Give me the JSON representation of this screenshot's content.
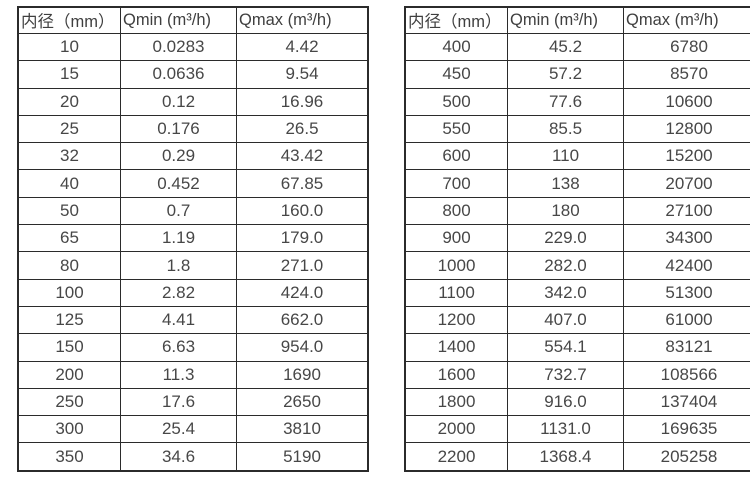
{
  "page": {
    "background_color": "#ffffff",
    "border_color": "#2b2b2b",
    "header_text_color": "#3f3f3f",
    "cell_text_color": "#474747"
  },
  "chart_data": [
    {
      "type": "table",
      "title": "",
      "columns": [
        "内径（mm）",
        "Qmin (m³/h)",
        "Qmax (m³/h)"
      ],
      "rows": [
        [
          "10",
          "0.0283",
          "4.42"
        ],
        [
          "15",
          "0.0636",
          "9.54"
        ],
        [
          "20",
          "0.12",
          "16.96"
        ],
        [
          "25",
          "0.176",
          "26.5"
        ],
        [
          "32",
          "0.29",
          "43.42"
        ],
        [
          "40",
          "0.452",
          "67.85"
        ],
        [
          "50",
          "0.7",
          "160.0"
        ],
        [
          "65",
          "1.19",
          "179.0"
        ],
        [
          "80",
          "1.8",
          "271.0"
        ],
        [
          "100",
          "2.82",
          "424.0"
        ],
        [
          "125",
          "4.41",
          "662.0"
        ],
        [
          "150",
          "6.63",
          "954.0"
        ],
        [
          "200",
          "11.3",
          "1690"
        ],
        [
          "250",
          "17.6",
          "2650"
        ],
        [
          "300",
          "25.4",
          "3810"
        ],
        [
          "350",
          "34.6",
          "5190"
        ]
      ]
    },
    {
      "type": "table",
      "title": "",
      "columns": [
        "内径（mm）",
        "Qmin (m³/h)",
        "Qmax (m³/h)"
      ],
      "rows": [
        [
          "400",
          "45.2",
          "6780"
        ],
        [
          "450",
          "57.2",
          "8570"
        ],
        [
          "500",
          "77.6",
          "10600"
        ],
        [
          "550",
          "85.5",
          "12800"
        ],
        [
          "600",
          "110",
          "15200"
        ],
        [
          "700",
          "138",
          "20700"
        ],
        [
          "800",
          "180",
          "27100"
        ],
        [
          "900",
          "229.0",
          "34300"
        ],
        [
          "1000",
          "282.0",
          "42400"
        ],
        [
          "1100",
          "342.0",
          "51300"
        ],
        [
          "1200",
          "407.0",
          "61000"
        ],
        [
          "1400",
          "554.1",
          "83121"
        ],
        [
          "1600",
          "732.7",
          "108566"
        ],
        [
          "1800",
          "916.0",
          "137404"
        ],
        [
          "2000",
          "1131.0",
          "169635"
        ],
        [
          "2200",
          "1368.4",
          "205258"
        ]
      ]
    }
  ]
}
